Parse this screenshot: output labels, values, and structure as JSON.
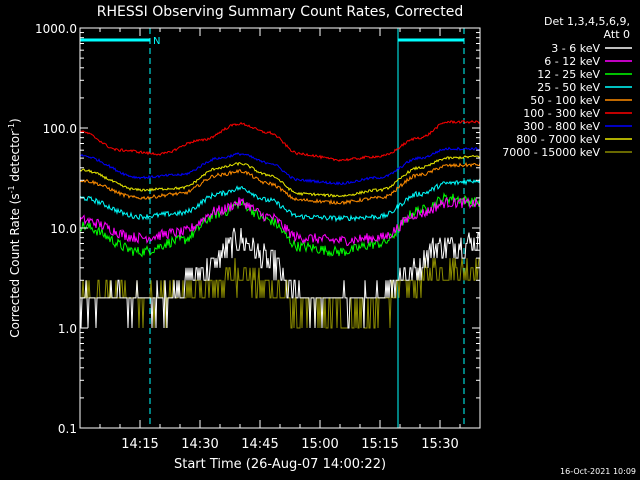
{
  "chart_data": {
    "type": "line",
    "title": "RHESSI Observing Summary Count Rates, Corrected",
    "xlabel": "Start Time (26-Aug-07 14:00:22)",
    "ylabel_main": "Corrected Count Rate (s",
    "ylabel_sup1": "-1",
    "ylabel_mid": " detector",
    "ylabel_sup2": "-1",
    "ylabel_end": ")",
    "yscale": "log",
    "ylim": [
      0.1,
      1000
    ],
    "xlim_minutes": [
      0,
      100
    ],
    "x_ticks": [
      {
        "m": 15,
        "label": "14:15"
      },
      {
        "m": 30,
        "label": "14:30"
      },
      {
        "m": 45,
        "label": "14:45"
      },
      {
        "m": 60,
        "label": "15:00"
      },
      {
        "m": 75,
        "label": "15:15"
      },
      {
        "m": 90,
        "label": "15:30"
      }
    ],
    "y_ticks": [
      {
        "v": 1000,
        "label": "1000.0"
      },
      {
        "v": 100,
        "label": "100.0"
      },
      {
        "v": 10,
        "label": "10.0"
      },
      {
        "v": 1,
        "label": "1.0"
      },
      {
        "v": 0.1,
        "label": "0.1"
      }
    ],
    "legend_header": [
      "Det 1,3,4,5,6,9,",
      "Att 0"
    ],
    "legend_placement": "right",
    "night_label": "N",
    "night_bars": [
      [
        0,
        17.5
      ],
      [
        79.5,
        96
      ]
    ],
    "saa_lines": [
      0,
      17.5,
      79.5,
      96
    ],
    "saa_color": "#00ffff",
    "series": [
      {
        "name": "3 - 6 keV",
        "color": "#ffffff",
        "knots": [
          [
            0,
            1.9
          ],
          [
            20,
            1.9
          ],
          [
            30,
            3.5
          ],
          [
            40,
            7.5
          ],
          [
            48,
            4.5
          ],
          [
            55,
            1.9
          ],
          [
            72,
            1.9
          ],
          [
            82,
            3.5
          ],
          [
            90,
            6.5
          ],
          [
            100,
            7.3
          ]
        ],
        "noise": 0.3,
        "step": true
      },
      {
        "name": "6 - 12 keV",
        "color": "#ff00ff",
        "knots": [
          [
            0,
            12
          ],
          [
            15,
            8
          ],
          [
            25,
            9
          ],
          [
            35,
            15
          ],
          [
            40,
            18
          ],
          [
            47,
            13
          ],
          [
            55,
            8
          ],
          [
            65,
            7.5
          ],
          [
            75,
            8
          ],
          [
            85,
            14
          ],
          [
            92,
            18
          ],
          [
            100,
            17.5
          ]
        ],
        "noise": 0.12
      },
      {
        "name": "12 - 25 keV",
        "color": "#00ff00",
        "knots": [
          [
            0,
            10.5
          ],
          [
            15,
            5.8
          ],
          [
            25,
            7.5
          ],
          [
            35,
            14
          ],
          [
            40,
            17.5
          ],
          [
            47,
            12
          ],
          [
            55,
            6.5
          ],
          [
            65,
            5.8
          ],
          [
            75,
            7
          ],
          [
            85,
            15
          ],
          [
            92,
            20
          ],
          [
            100,
            18
          ]
        ],
        "noise": 0.12
      },
      {
        "name": "25 - 50 keV",
        "color": "#00ffff",
        "knots": [
          [
            0,
            20
          ],
          [
            15,
            13
          ],
          [
            25,
            14
          ],
          [
            35,
            22
          ],
          [
            40,
            25
          ],
          [
            47,
            19
          ],
          [
            55,
            13
          ],
          [
            65,
            12.5
          ],
          [
            75,
            13
          ],
          [
            85,
            22
          ],
          [
            92,
            28
          ],
          [
            100,
            30
          ]
        ],
        "noise": 0.06
      },
      {
        "name": "50 - 100 keV",
        "color": "#ff8c00",
        "knots": [
          [
            0,
            30
          ],
          [
            15,
            20
          ],
          [
            25,
            22
          ],
          [
            35,
            34
          ],
          [
            40,
            37
          ],
          [
            47,
            28
          ],
          [
            55,
            19
          ],
          [
            65,
            18
          ],
          [
            75,
            20
          ],
          [
            85,
            34
          ],
          [
            92,
            42
          ],
          [
            100,
            43
          ]
        ],
        "noise": 0.04
      },
      {
        "name": "100 - 300 keV",
        "color": "#ff0000",
        "knots": [
          [
            0,
            92
          ],
          [
            10,
            60
          ],
          [
            20,
            55
          ],
          [
            30,
            75
          ],
          [
            40,
            110
          ],
          [
            47,
            90
          ],
          [
            55,
            55
          ],
          [
            65,
            48
          ],
          [
            75,
            52
          ],
          [
            85,
            80
          ],
          [
            92,
            115
          ],
          [
            100,
            115
          ]
        ],
        "noise": 0.03
      },
      {
        "name": "300 - 800 keV",
        "color": "#0000ff",
        "knots": [
          [
            0,
            53
          ],
          [
            15,
            32
          ],
          [
            25,
            34
          ],
          [
            35,
            50
          ],
          [
            40,
            55
          ],
          [
            47,
            45
          ],
          [
            55,
            30
          ],
          [
            65,
            28
          ],
          [
            75,
            32
          ],
          [
            85,
            50
          ],
          [
            92,
            62
          ],
          [
            100,
            62
          ]
        ],
        "noise": 0.03
      },
      {
        "name": "800 - 7000 keV",
        "color": "#e8e800",
        "knots": [
          [
            0,
            38
          ],
          [
            15,
            24
          ],
          [
            25,
            25
          ],
          [
            35,
            40
          ],
          [
            40,
            44
          ],
          [
            47,
            34
          ],
          [
            55,
            22
          ],
          [
            65,
            21
          ],
          [
            75,
            24
          ],
          [
            85,
            40
          ],
          [
            92,
            50
          ],
          [
            100,
            52
          ]
        ],
        "noise": 0.03
      },
      {
        "name": "7000 - 15000 keV",
        "color": "#8b8b00",
        "knots": [
          [
            0,
            2
          ],
          [
            20,
            2
          ],
          [
            30,
            2.2
          ],
          [
            40,
            3.5
          ],
          [
            48,
            2.5
          ],
          [
            55,
            1.5
          ],
          [
            72,
            1.4
          ],
          [
            82,
            2.5
          ],
          [
            90,
            4
          ],
          [
            100,
            3.8
          ]
        ],
        "noise": 0.35,
        "step": true
      }
    ]
  },
  "footer_date": "16-Oct-2021 10:09"
}
